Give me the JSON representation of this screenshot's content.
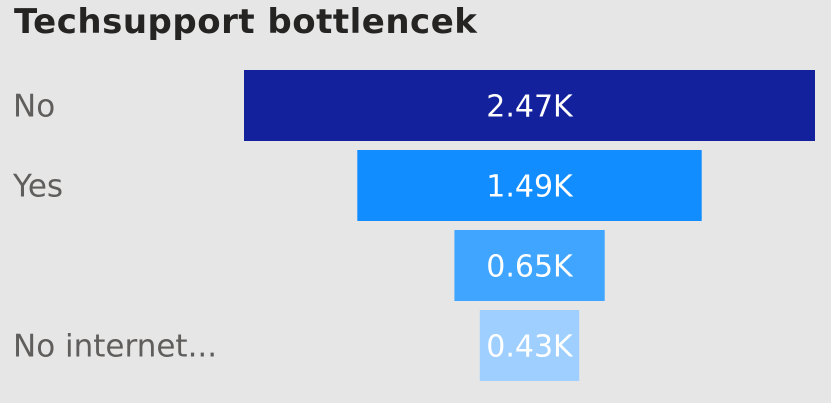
{
  "chart_data": {
    "type": "bar",
    "subtype": "funnel",
    "title": "Techsupport bottlencek",
    "categories": [
      "No",
      "Yes",
      "",
      "No internet..."
    ],
    "values": [
      2470,
      1490,
      650,
      430
    ],
    "value_labels": [
      "2.47K",
      "1.49K",
      "0.65K",
      "0.43K"
    ],
    "colors": [
      "#13219c",
      "#128dff",
      "#3fa5ff",
      "#9ecfff"
    ],
    "legend": "none",
    "grid": false
  }
}
